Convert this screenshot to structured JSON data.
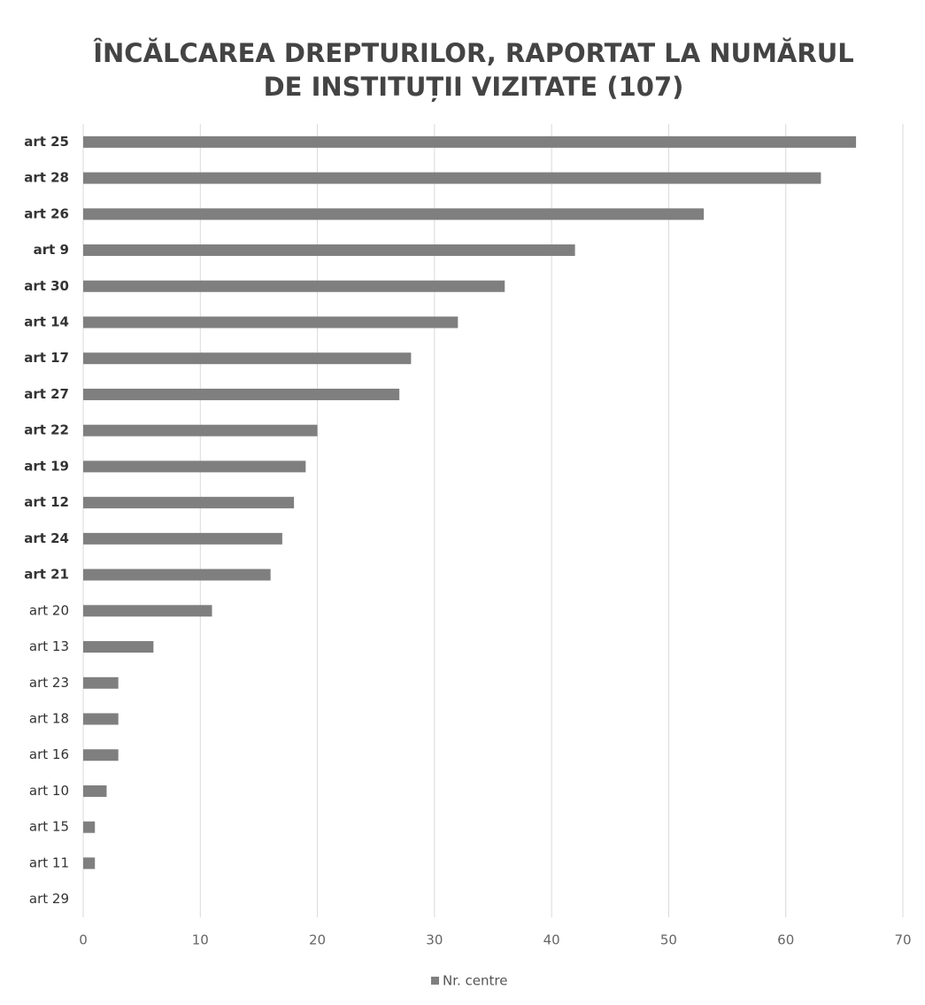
{
  "chart_data": {
    "type": "hbar",
    "title": [
      "ÎNCĂLCAREA DREPTURILOR, RAPORTAT LA NUMĂRUL",
      "DE INSTITUȚII VIZITATE (107)"
    ],
    "categories": [
      "art 25",
      "art 28",
      "art 26",
      "art 9",
      "art 30",
      "art 14",
      "art 17",
      "art 27",
      "art 22",
      "art 19",
      "art 12",
      "art 24",
      "art 21",
      "art 20",
      "art 13",
      "art 23",
      "art 18",
      "art 16",
      "art 10",
      "art 15",
      "art 11",
      "art 29"
    ],
    "series": [
      {
        "name": "Nr. centre",
        "color": "#7f7f7f",
        "values": [
          66,
          63,
          53,
          42,
          36,
          32,
          28,
          27,
          20,
          19,
          18,
          17,
          16,
          11,
          6,
          3,
          3,
          3,
          2,
          1,
          1,
          0
        ]
      }
    ],
    "xlim": [
      0,
      70
    ],
    "xticks": [
      0,
      10,
      20,
      30,
      40,
      50,
      60,
      70
    ],
    "grid": true,
    "legend": "bottom"
  }
}
